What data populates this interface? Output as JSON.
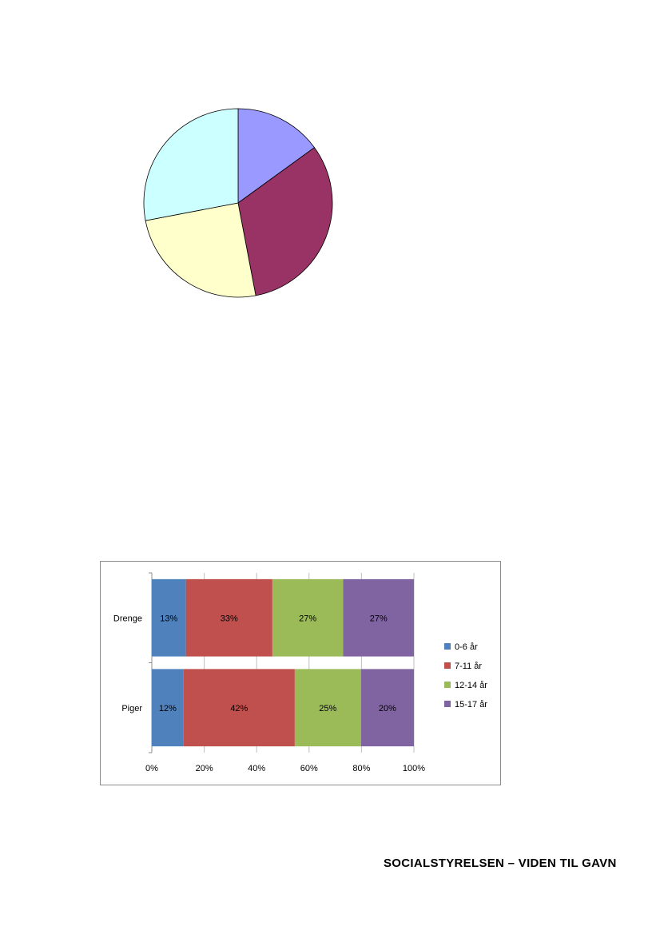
{
  "chart_data": [
    {
      "type": "pie",
      "values": [
        15,
        32,
        25,
        28
      ],
      "colors": [
        "#9999ff",
        "#993366",
        "#ffffcc",
        "#ccffff"
      ],
      "start_angle": 0,
      "direction": "clockwise"
    },
    {
      "type": "bar",
      "orientation": "horizontal",
      "stacked": "percent",
      "categories": [
        "Drenge",
        "Piger"
      ],
      "series": [
        {
          "name": "0-6 år",
          "values": [
            13,
            12
          ],
          "labels": [
            "13%",
            "12%"
          ],
          "color": "#4f81bd"
        },
        {
          "name": "7-11 år",
          "values": [
            33,
            42
          ],
          "labels": [
            "33%",
            "42%"
          ],
          "color": "#c0504d"
        },
        {
          "name": "12-14 år",
          "values": [
            27,
            25
          ],
          "labels": [
            "27%",
            "25%"
          ],
          "color": "#9bbb59"
        },
        {
          "name": "15-17 år",
          "values": [
            27,
            20
          ],
          "labels": [
            "27%",
            "20%"
          ],
          "color": "#8064a2"
        }
      ],
      "xlim": [
        0,
        100
      ],
      "xticks": [
        "0%",
        "20%",
        "40%",
        "60%",
        "80%",
        "100%"
      ],
      "grid": true,
      "legend": "right"
    }
  ],
  "footer": {
    "text": "SOCIALSTYRELSEN – VIDEN TIL GAVN"
  }
}
